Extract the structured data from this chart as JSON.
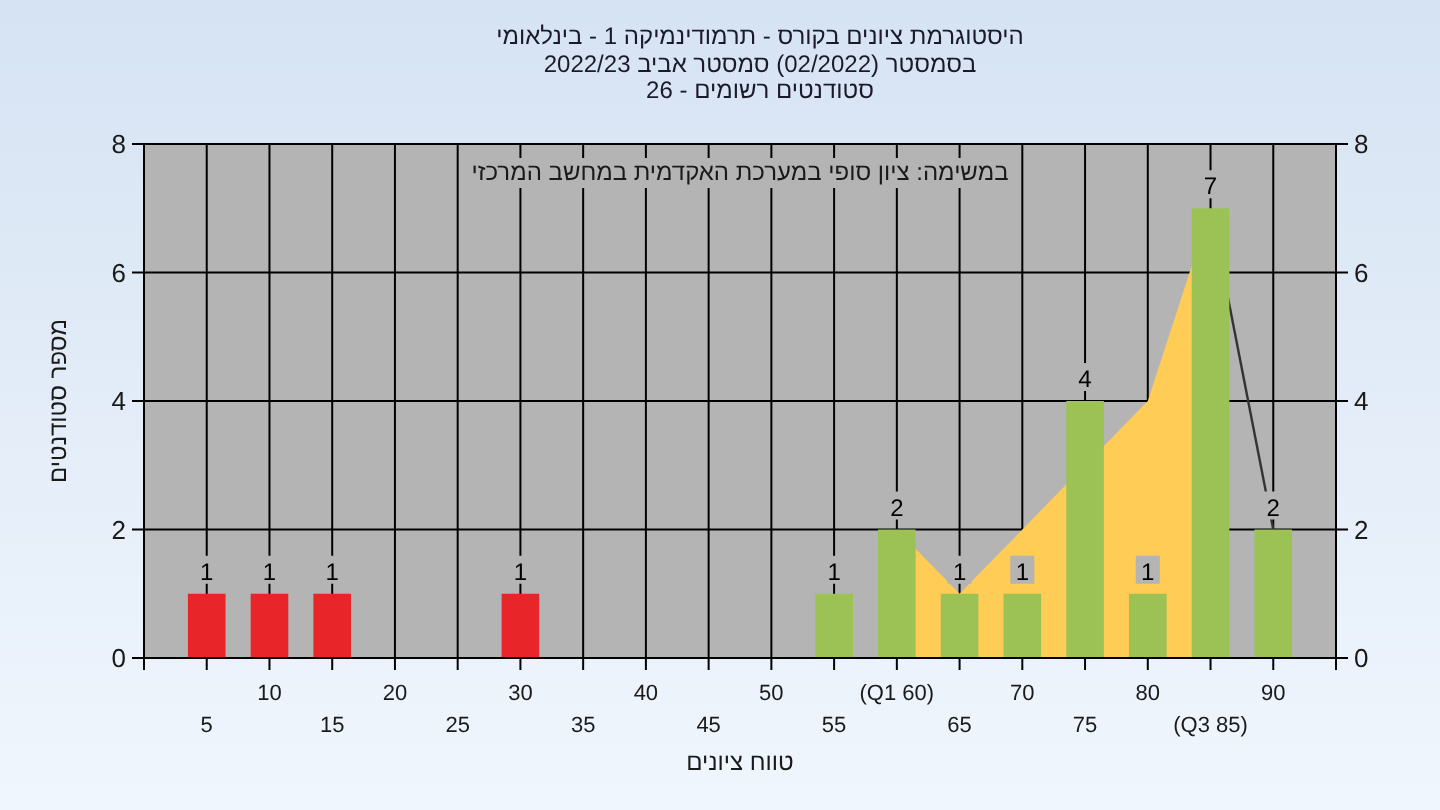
{
  "chart_data": {
    "type": "bar",
    "title": "היסטוגרמת ציונים בקורס - תרמודינמיקה 1 - בינלאומי",
    "subtitle": "בסמסטר  (02/2022)  סמסטר אביב 2022/23\nסטודנטים רשומים - 26",
    "xlabel": "טווח ציונים",
    "ylabel": "מספר סטודנטים",
    "annotations": [
      "במשימה: ציון סופי במערכת האקדמית במחשב המרכזי"
    ],
    "categories": [
      "5",
      "10",
      "15",
      "20",
      "25",
      "30",
      "35",
      "40",
      "45",
      "50",
      "55",
      "(Q1 60)",
      "65",
      "70",
      "75",
      "80",
      "(Q3 85)",
      "90"
    ],
    "series": [
      {
        "type": "area",
        "color": "#ffcc55",
        "values": [
          null,
          null,
          null,
          null,
          null,
          null,
          null,
          null,
          null,
          null,
          null,
          2,
          1,
          2,
          null,
          4,
          7,
          null
        ]
      },
      {
        "type": "line",
        "color": "#333333",
        "values": [
          null,
          null,
          null,
          null,
          null,
          null,
          null,
          null,
          null,
          null,
          null,
          null,
          null,
          null,
          null,
          null,
          7,
          2
        ]
      },
      {
        "value_labels": [
          "1",
          "1",
          "1",
          null,
          null,
          "1",
          null,
          null,
          null,
          null,
          "1",
          "2",
          "1",
          "1",
          "4",
          "1",
          "7",
          "2"
        ],
        "colors": [
          "#e8262a",
          "#e8262a",
          "#e8262a",
          null,
          null,
          "#e8262a",
          null,
          null,
          null,
          null,
          "#9cc255",
          "#9cc255",
          "#9cc255",
          "#9cc255",
          "#9cc255",
          "#9cc255",
          "#9cc255",
          "#9cc255"
        ],
        "values": [
          1,
          1,
          1,
          null,
          null,
          1,
          null,
          null,
          null,
          null,
          1,
          2,
          1,
          1,
          4,
          1,
          7,
          2
        ]
      }
    ],
    "grid": true,
    "ylim": [
      0,
      8
    ],
    "yticks": [
      0,
      2,
      4,
      6,
      8
    ],
    "y2lim": [
      0,
      8
    ],
    "y2ticks": [
      0,
      2,
      4,
      6,
      8
    ]
  }
}
